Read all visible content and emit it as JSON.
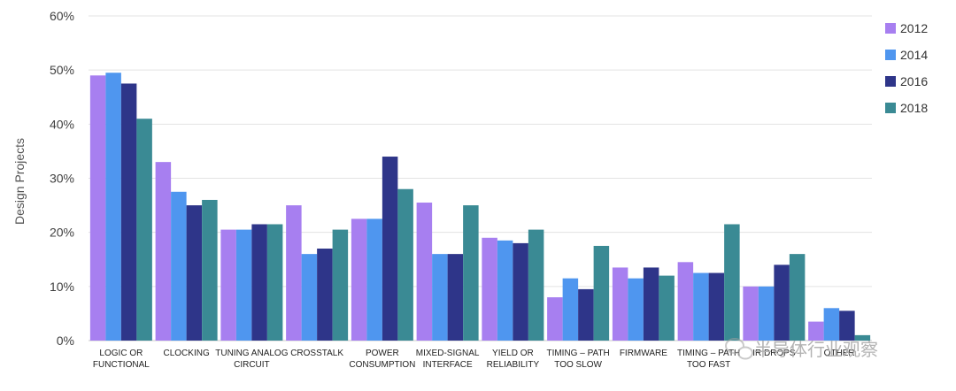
{
  "chart_data": {
    "type": "bar",
    "ylabel": "Design Projects",
    "ylim": [
      0,
      60
    ],
    "yticks": [
      "0%",
      "10%",
      "20%",
      "30%",
      "40%",
      "50%",
      "60%"
    ],
    "grid": true,
    "legend_position": "right",
    "categories": [
      [
        "LOGIC OR",
        "FUNCTIONAL"
      ],
      [
        "CLOCKING"
      ],
      [
        "TUNING ANALOG",
        "CIRCUIT"
      ],
      [
        "CROSSTALK"
      ],
      [
        "POWER",
        "CONSUMPTION"
      ],
      [
        "MIXED-SIGNAL",
        "INTERFACE"
      ],
      [
        "YIELD OR",
        "RELIABILITY"
      ],
      [
        "TIMING – PATH",
        "TOO SLOW"
      ],
      [
        "FIRMWARE"
      ],
      [
        "TIMING – PATH",
        "TOO FAST"
      ],
      [
        "IR DROPS"
      ],
      [
        "OTHER"
      ]
    ],
    "series": [
      {
        "name": "2012",
        "color": "#a77ff0",
        "values": [
          49,
          33,
          20.5,
          25,
          22.5,
          25.5,
          19,
          8,
          13.5,
          14.5,
          10,
          3.5
        ]
      },
      {
        "name": "2014",
        "color": "#4f96ef",
        "values": [
          49.5,
          27.5,
          20.5,
          16,
          22.5,
          16,
          18.5,
          11.5,
          11.5,
          12.5,
          10,
          6
        ]
      },
      {
        "name": "2016",
        "color": "#2e3589",
        "values": [
          47.5,
          25,
          21.5,
          17,
          34,
          16,
          18,
          9.5,
          13.5,
          12.5,
          14,
          5.5
        ]
      },
      {
        "name": "2018",
        "color": "#3a8a94",
        "values": [
          41,
          26,
          21.5,
          20.5,
          28,
          25,
          20.5,
          17.5,
          12,
          21.5,
          16,
          1
        ]
      }
    ]
  },
  "watermark": {
    "text": "半导体行业观察",
    "icon": "wechat-icon"
  }
}
